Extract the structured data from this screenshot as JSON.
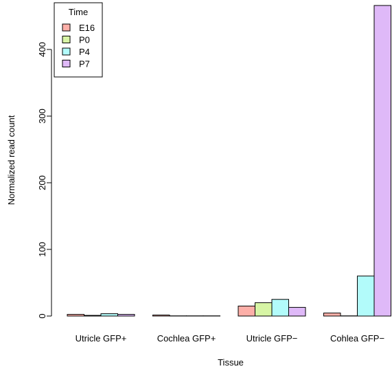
{
  "chart_data": {
    "type": "bar",
    "xlabel": "Tissue",
    "ylabel": "Normalized read count",
    "categories": [
      "Utricle GFP+",
      "Cochlea GFP+",
      "Utricle GFP−",
      "Cohlea GFP−"
    ],
    "ylim": [
      0,
      466
    ],
    "yticks": [
      0,
      100,
      200,
      300,
      400
    ],
    "legend": {
      "title": "Time",
      "position": "top-left"
    },
    "grid": false,
    "series": [
      {
        "name": "E16",
        "color": "#FDAFA8",
        "values": [
          2.5,
          1.5,
          15,
          4.5
        ]
      },
      {
        "name": "P0",
        "color": "#D7F5A5",
        "values": [
          1,
          0.3,
          20,
          0.3
        ]
      },
      {
        "name": "P4",
        "color": "#B2FBFA",
        "values": [
          3.5,
          0.3,
          25,
          60
        ]
      },
      {
        "name": "P7",
        "color": "#DFB9F8",
        "values": [
          2.5,
          0.3,
          13,
          466
        ]
      }
    ]
  }
}
